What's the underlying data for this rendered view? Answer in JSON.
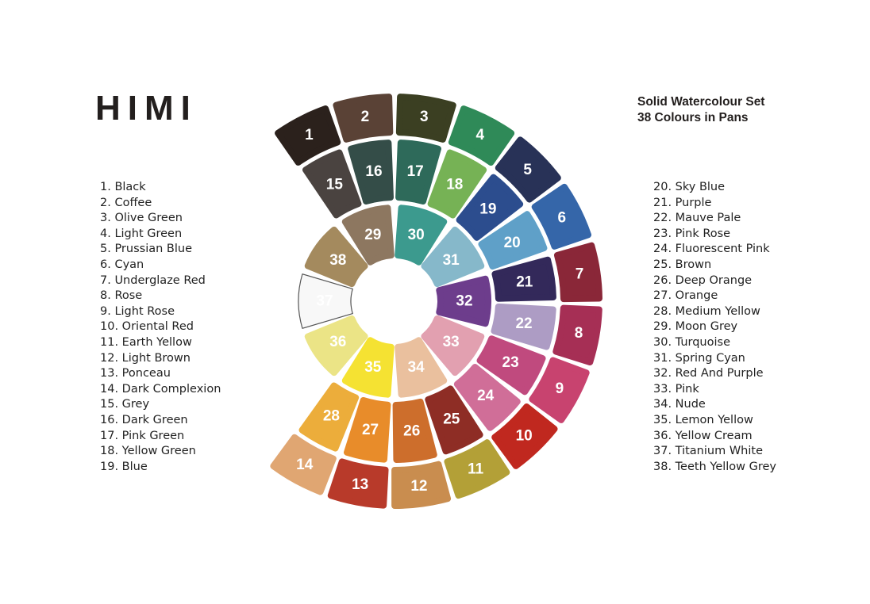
{
  "brand": "HIMI",
  "title_line1": "Solid Watercolour Set",
  "title_line2": "38 Colours in Pans",
  "colours": [
    {
      "num": "1",
      "name": "Black",
      "color": "#2b211c"
    },
    {
      "num": "2",
      "name": "Coffee",
      "color": "#5a4236"
    },
    {
      "num": "3",
      "name": "Olive Green",
      "color": "#3b3f22"
    },
    {
      "num": "4",
      "name": "Light Green",
      "color": "#2f8a58"
    },
    {
      "num": "5",
      "name": "Prussian Blue",
      "color": "#283257"
    },
    {
      "num": "6",
      "name": "Cyan",
      "color": "#3566a9"
    },
    {
      "num": "7",
      "name": "Underglaze Red",
      "color": "#8a2738"
    },
    {
      "num": "8",
      "name": "Rose",
      "color": "#a62f55"
    },
    {
      "num": "9",
      "name": "Light Rose",
      "color": "#c8436f"
    },
    {
      "num": "10",
      "name": "Oriental Red",
      "color": "#c0281f"
    },
    {
      "num": "11",
      "name": "Earth Yellow",
      "color": "#b3a037"
    },
    {
      "num": "12",
      "name": "Light Brown",
      "color": "#c98d4f"
    },
    {
      "num": "13",
      "name": "Ponceau",
      "color": "#b83a2a"
    },
    {
      "num": "14",
      "name": "Dark Complexion",
      "color": "#e0a672"
    },
    {
      "num": "15",
      "name": "Grey",
      "color": "#4a4340"
    },
    {
      "num": "16",
      "name": "Dark Green",
      "color": "#344d48"
    },
    {
      "num": "17",
      "name": "Pink Green",
      "color": "#2e6a5a"
    },
    {
      "num": "18",
      "name": "Yellow Green",
      "color": "#76b255"
    },
    {
      "num": "19",
      "name": "Blue",
      "color": "#2c4d8e"
    },
    {
      "num": "20",
      "name": "Sky Blue",
      "color": "#5fa0c8"
    },
    {
      "num": "21",
      "name": "Purple",
      "color": "#33295a"
    },
    {
      "num": "22",
      "name": "Mauve Pale",
      "color": "#ad9cc4"
    },
    {
      "num": "23",
      "name": "Pink Rose",
      "color": "#c04a7e"
    },
    {
      "num": "24",
      "name": "Fluorescent Pink",
      "color": "#d06e98"
    },
    {
      "num": "25",
      "name": "Brown",
      "color": "#8e2d25"
    },
    {
      "num": "26",
      "name": "Deep Orange",
      "color": "#cd6e2c"
    },
    {
      "num": "27",
      "name": "Orange",
      "color": "#e88c2a"
    },
    {
      "num": "28",
      "name": "Medium Yellow",
      "color": "#ecad3b"
    },
    {
      "num": "29",
      "name": "Moon Grey",
      "color": "#8d7760"
    },
    {
      "num": "30",
      "name": "Turquoise",
      "color": "#3c9a8e"
    },
    {
      "num": "31",
      "name": "Spring Cyan",
      "color": "#86b8ca"
    },
    {
      "num": "32",
      "name": "Red And Purple",
      "color": "#6d3d8c"
    },
    {
      "num": "33",
      "name": "Pink",
      "color": "#e2a0b0"
    },
    {
      "num": "34",
      "name": "Nude",
      "color": "#eac09e"
    },
    {
      "num": "35",
      "name": "Lemon Yellow",
      "color": "#f5e232"
    },
    {
      "num": "36",
      "name": "Yellow Cream",
      "color": "#ebe486"
    },
    {
      "num": "37",
      "name": "Titanium White",
      "color": "#f8f8f8"
    },
    {
      "num": "38",
      "name": "Teeth Yellow Grey",
      "color": "#a48a5e"
    }
  ]
}
